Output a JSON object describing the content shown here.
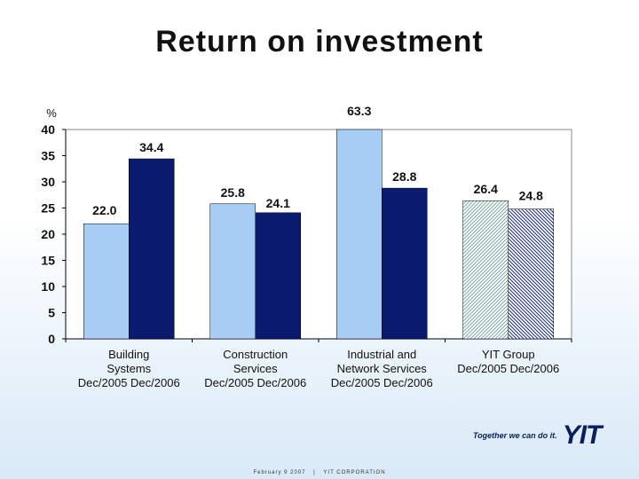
{
  "page": {
    "title": "Return on investment",
    "footer_date": "February 9 2007",
    "footer_sep": "|",
    "footer_org": "YIT CORPORATION",
    "logo_slogan": "Together we can do it.",
    "logo_mark": "YIT"
  },
  "chart_data": {
    "type": "bar",
    "ylabel": "%",
    "ylim": [
      0,
      40
    ],
    "yticks": [
      0,
      5,
      10,
      15,
      20,
      25,
      30,
      35,
      40
    ],
    "grid": false,
    "groups": [
      {
        "label_lines": [
          "Building",
          "Systems",
          "Dec/2005   Dec/2006"
        ],
        "values": [
          22.0,
          34.4
        ],
        "value_labels": [
          "22.0",
          "34.4"
        ],
        "hatched": false
      },
      {
        "label_lines": [
          "Construction",
          "Services",
          "Dec/2005   Dec/2006"
        ],
        "values": [
          25.8,
          24.1
        ],
        "value_labels": [
          "25.8",
          "24.1"
        ],
        "hatched": false
      },
      {
        "label_lines": [
          "Industrial and",
          "Network Services",
          "Dec/2005   Dec/2006"
        ],
        "values": [
          63.3,
          28.8
        ],
        "value_labels": [
          "63.3",
          "28.8"
        ],
        "hatched": false
      },
      {
        "label_lines": [
          "YIT Group",
          "Dec/2005  Dec/2006"
        ],
        "values": [
          26.4,
          24.8
        ],
        "value_labels": [
          "26.4",
          "24.8"
        ],
        "hatched": true
      }
    ],
    "colors": {
      "dec2005": "#a8cdf5",
      "dec2006": "#0a1a6e"
    }
  }
}
